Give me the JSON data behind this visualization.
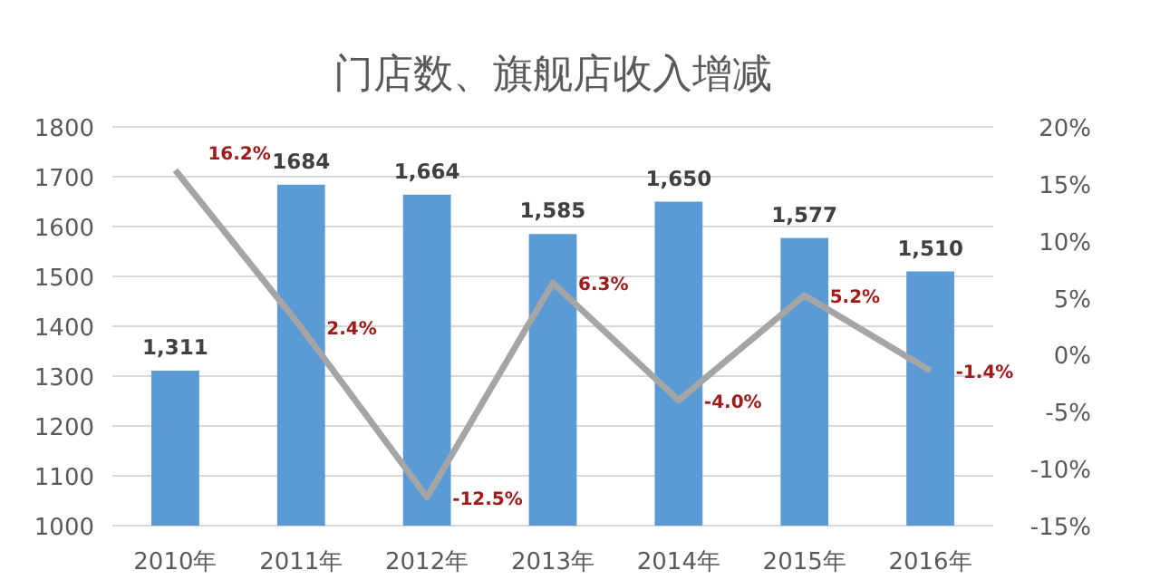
{
  "chart_data": {
    "type": "bar",
    "title": "门店数、旗舰店收入增减",
    "categories": [
      "2010年",
      "2011年",
      "2012年",
      "2013年",
      "2014年",
      "2015年",
      "2016年"
    ],
    "series": [
      {
        "color": "#5b9bd5",
        "values": [
          1311,
          1684,
          1664,
          1585,
          1650,
          1577,
          1510
        ],
        "value_labels": [
          "1,311",
          "1684",
          "1,664",
          "1,585",
          "1,650",
          "1,577",
          "1,510"
        ]
      },
      {
        "type": "line",
        "axis": "y2",
        "color": "#a5a5a5",
        "values": [
          16.2,
          2.4,
          -12.5,
          6.3,
          -4.0,
          5.2,
          -1.4
        ],
        "value_labels": [
          "16.2%",
          "2.4%",
          "-12.5%",
          "6.3%",
          "-4.0%",
          "5.2%",
          "-1.4%"
        ]
      }
    ],
    "ylim": [
      1000,
      1800
    ],
    "yticks": [
      1000,
      1100,
      1200,
      1300,
      1400,
      1500,
      1600,
      1700,
      1800
    ],
    "y2lim": [
      -15,
      20
    ],
    "y2ticks": [
      {
        "value": -15,
        "label": "-15%"
      },
      {
        "value": -10,
        "label": "-10%"
      },
      {
        "value": -5,
        "label": "-5%"
      },
      {
        "value": 0,
        "label": "0%"
      },
      {
        "value": 5,
        "label": "5%"
      },
      {
        "value": 10,
        "label": "10%"
      },
      {
        "value": 15,
        "label": "15%"
      },
      {
        "value": 20,
        "label": "20%"
      }
    ],
    "grid": "y",
    "marker": "none",
    "line_style": "solid"
  }
}
